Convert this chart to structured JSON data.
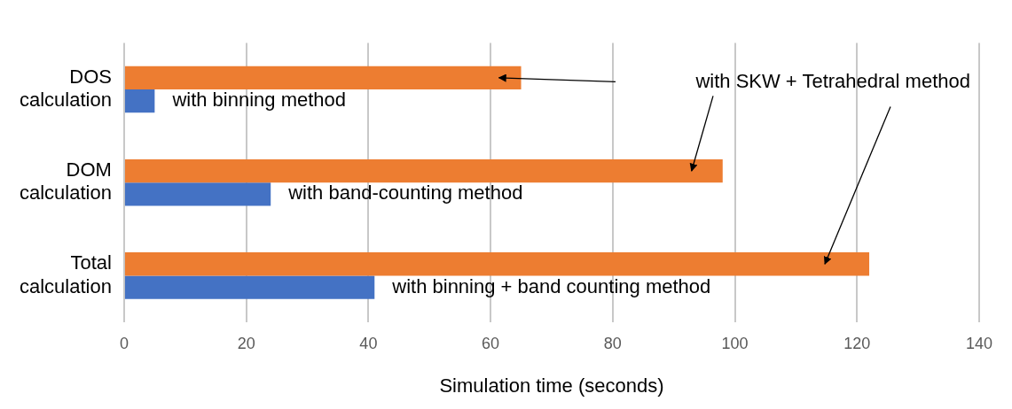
{
  "chart_data": {
    "type": "bar",
    "orientation": "horizontal",
    "categories": [
      "DOS calculation",
      "DOM calculation",
      "Total calculation"
    ],
    "series": [
      {
        "color": "#ed7d31",
        "values": [
          65,
          98,
          122
        ]
      },
      {
        "color": "#4472c4",
        "values": [
          5,
          24,
          41
        ]
      }
    ],
    "xlim": [
      0,
      140
    ],
    "xticks": [
      0,
      20,
      40,
      60,
      80,
      100,
      120,
      140
    ],
    "xlabel": "Simulation time (seconds)",
    "grid": "x",
    "legend": false,
    "annotations": [
      "with SKW + Tetrahedral method",
      {
        "text": "with binning method",
        "x": 5,
        "y": "DOS calculation"
      },
      {
        "text": "with band-counting method",
        "x": 24,
        "y": "DOM calculation"
      },
      {
        "text": "with binning + band counting method",
        "x": 41,
        "y": "Total calculation"
      }
    ]
  }
}
